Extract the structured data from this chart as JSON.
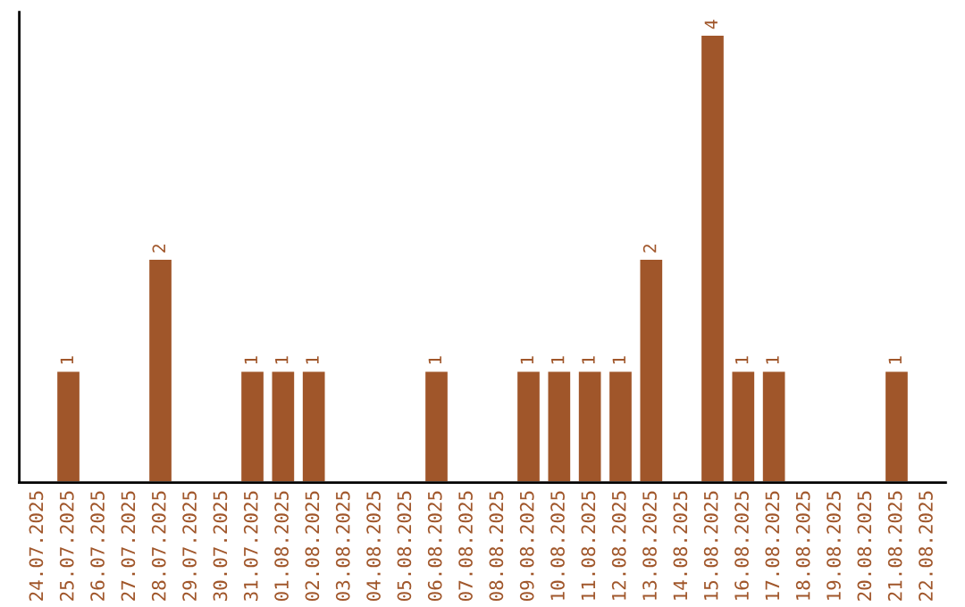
{
  "chart_data": {
    "type": "bar",
    "categories": [
      "24.07.2025",
      "25.07.2025",
      "26.07.2025",
      "27.07.2025",
      "28.07.2025",
      "29.07.2025",
      "30.07.2025",
      "31.07.2025",
      "01.08.2025",
      "02.08.2025",
      "03.08.2025",
      "04.08.2025",
      "05.08.2025",
      "06.08.2025",
      "07.08.2025",
      "08.08.2025",
      "09.08.2025",
      "10.08.2025",
      "11.08.2025",
      "12.08.2025",
      "13.08.2025",
      "14.08.2025",
      "15.08.2025",
      "16.08.2025",
      "17.08.2025",
      "18.08.2025",
      "19.08.2025",
      "20.08.2025",
      "21.08.2025",
      "22.08.2025"
    ],
    "values": [
      null,
      1,
      null,
      null,
      2,
      null,
      null,
      1,
      1,
      1,
      null,
      null,
      null,
      1,
      null,
      null,
      1,
      1,
      1,
      1,
      2,
      null,
      4,
      1,
      1,
      null,
      null,
      null,
      1,
      null
    ],
    "value_labels": [
      null,
      "1",
      null,
      null,
      "2",
      null,
      null,
      "1",
      "1",
      "1",
      null,
      null,
      null,
      "1",
      null,
      null,
      "1",
      "1",
      "1",
      "1",
      "2",
      null,
      "4",
      "1",
      "1",
      null,
      null,
      null,
      "1",
      null
    ],
    "color": "#a0562a",
    "tick_labels": "x",
    "grid": false,
    "legend": false
  }
}
